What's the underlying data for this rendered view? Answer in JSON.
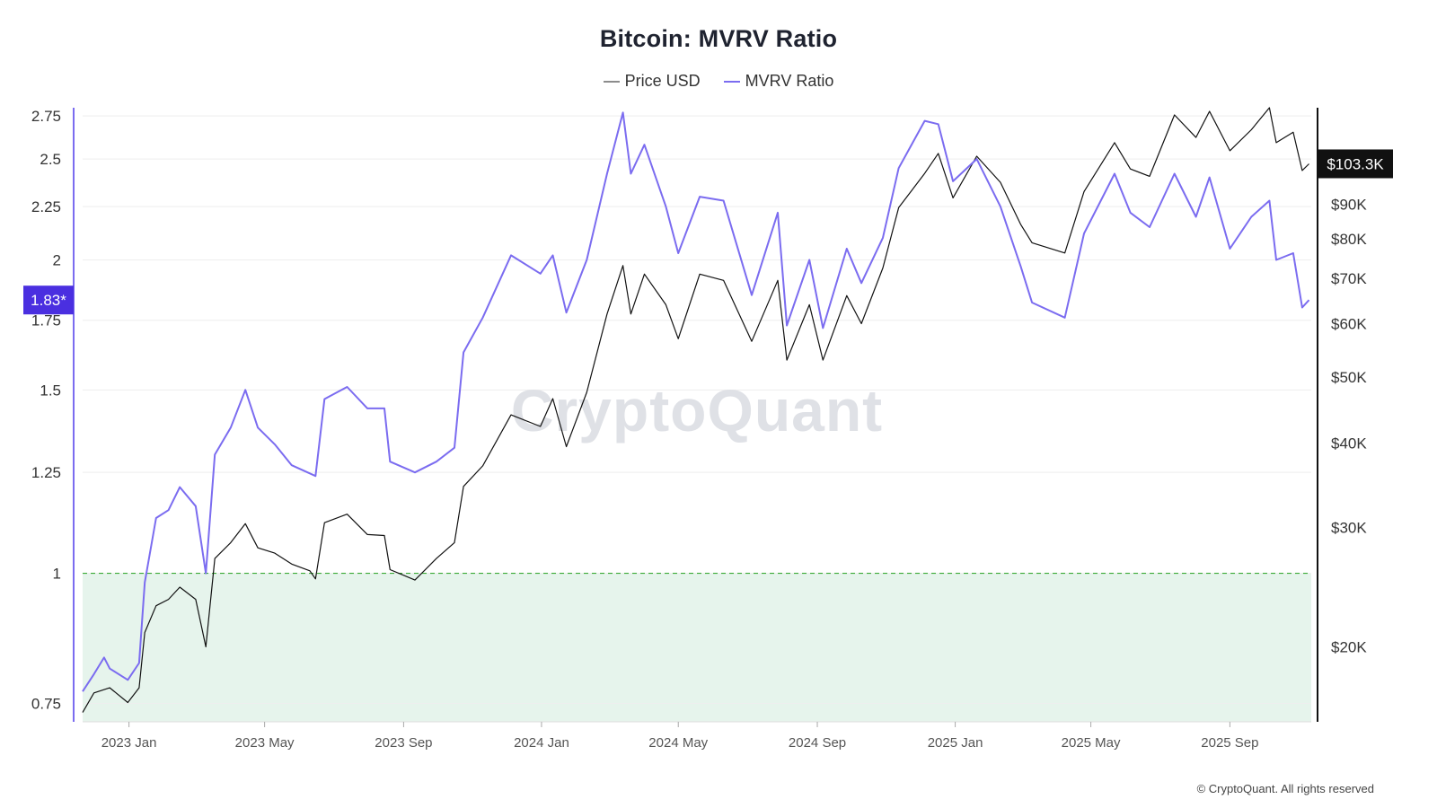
{
  "chart_data": {
    "type": "line",
    "title": "Bitcoin: MVRV Ratio",
    "legend": [
      {
        "name": "Price USD",
        "color": "#8c8c8c"
      },
      {
        "name": "MVRV Ratio",
        "color": "#7b6cf0"
      }
    ],
    "legend_placement": "top-center",
    "y_left": {
      "ticks": [
        "0.75",
        "1",
        "1.25",
        "1.5",
        "1.75",
        "2",
        "2.25",
        "2.5",
        "2.75"
      ],
      "range": [
        0.72,
        2.8
      ],
      "scale": "log",
      "current_value_label": "1.83*",
      "current_value": 1.83,
      "color": "#7b6cf0"
    },
    "y_right": {
      "ticks": [
        "$20K",
        "$30K",
        "$40K",
        "$50K",
        "$60K",
        "$70K",
        "$80K",
        "$90K"
      ],
      "range": [
        15500,
        125000
      ],
      "scale": "log",
      "current_value_label": "$103.3K",
      "current_value": 103300
    },
    "x_axis": {
      "ticks": [
        "2023 Jan",
        "2023 May",
        "2023 Sep",
        "2024 Jan",
        "2024 May",
        "2024 Sep",
        "2025 Jan",
        "2025 May",
        "2025 Sep"
      ]
    },
    "threshold": {
      "value": 1,
      "style": "dashed",
      "color": "#3aaa35",
      "fill_below": "#e6f4ec"
    },
    "grid": true,
    "series": [
      {
        "name": "Price USD",
        "color": "#111111",
        "axis": "right",
        "points": [
          [
            "2022-11-21",
            16000
          ],
          [
            "2022-12-01",
            17100
          ],
          [
            "2022-12-15",
            17400
          ],
          [
            "2022-12-31",
            16550
          ],
          [
            "2023-01-10",
            17400
          ],
          [
            "2023-01-15",
            21000
          ],
          [
            "2023-01-25",
            23000
          ],
          [
            "2023-02-05",
            23500
          ],
          [
            "2023-02-15",
            24500
          ],
          [
            "2023-03-01",
            23500
          ],
          [
            "2023-03-10",
            20000
          ],
          [
            "2023-03-18",
            27000
          ],
          [
            "2023-04-01",
            28500
          ],
          [
            "2023-04-14",
            30400
          ],
          [
            "2023-04-25",
            28000
          ],
          [
            "2023-05-10",
            27500
          ],
          [
            "2023-05-25",
            26500
          ],
          [
            "2023-06-10",
            25900
          ],
          [
            "2023-06-15",
            25200
          ],
          [
            "2023-06-23",
            30500
          ],
          [
            "2023-07-13",
            31400
          ],
          [
            "2023-07-31",
            29300
          ],
          [
            "2023-08-15",
            29200
          ],
          [
            "2023-08-20",
            26000
          ],
          [
            "2023-09-11",
            25100
          ],
          [
            "2023-09-30",
            27000
          ],
          [
            "2023-10-16",
            28500
          ],
          [
            "2023-10-24",
            34500
          ],
          [
            "2023-11-10",
            37000
          ],
          [
            "2023-12-05",
            44000
          ],
          [
            "2023-12-31",
            42300
          ],
          [
            "2024-01-11",
            46500
          ],
          [
            "2024-01-23",
            39500
          ],
          [
            "2024-02-10",
            47500
          ],
          [
            "2024-02-28",
            62000
          ],
          [
            "2024-03-13",
            73100
          ],
          [
            "2024-03-20",
            62000
          ],
          [
            "2024-04-01",
            71000
          ],
          [
            "2024-04-20",
            64000
          ],
          [
            "2024-05-01",
            57000
          ],
          [
            "2024-05-20",
            71000
          ],
          [
            "2024-06-10",
            69500
          ],
          [
            "2024-07-05",
            56500
          ],
          [
            "2024-07-28",
            69500
          ],
          [
            "2024-08-05",
            53000
          ],
          [
            "2024-08-25",
            64000
          ],
          [
            "2024-09-06",
            53000
          ],
          [
            "2024-09-27",
            66000
          ],
          [
            "2024-10-10",
            60000
          ],
          [
            "2024-10-29",
            72500
          ],
          [
            "2024-11-12",
            89000
          ],
          [
            "2024-12-05",
            100000
          ],
          [
            "2024-12-17",
            107000
          ],
          [
            "2024-12-30",
            92000
          ],
          [
            "2025-01-20",
            106000
          ],
          [
            "2025-02-10",
            97000
          ],
          [
            "2025-02-28",
            84000
          ],
          [
            "2025-03-10",
            79000
          ],
          [
            "2025-04-08",
            76300
          ],
          [
            "2025-04-25",
            94000
          ],
          [
            "2025-05-22",
            111000
          ],
          [
            "2025-06-05",
            101500
          ],
          [
            "2025-06-22",
            99000
          ],
          [
            "2025-07-14",
            122000
          ],
          [
            "2025-08-02",
            113000
          ],
          [
            "2025-08-14",
            123500
          ],
          [
            "2025-09-01",
            108000
          ],
          [
            "2025-09-20",
            116000
          ],
          [
            "2025-10-06",
            125000
          ],
          [
            "2025-10-12",
            111000
          ],
          [
            "2025-10-27",
            115000
          ],
          [
            "2025-11-04",
            101000
          ],
          [
            "2025-11-10",
            103300
          ]
        ]
      },
      {
        "name": "MVRV Ratio",
        "color": "#7b6cf0",
        "axis": "left",
        "points": [
          [
            "2022-11-21",
            0.77
          ],
          [
            "2022-12-01",
            0.8
          ],
          [
            "2022-12-10",
            0.83
          ],
          [
            "2022-12-15",
            0.81
          ],
          [
            "2022-12-31",
            0.79
          ],
          [
            "2023-01-10",
            0.82
          ],
          [
            "2023-01-15",
            0.98
          ],
          [
            "2023-01-25",
            1.13
          ],
          [
            "2023-02-05",
            1.15
          ],
          [
            "2023-02-15",
            1.21
          ],
          [
            "2023-03-01",
            1.16
          ],
          [
            "2023-03-10",
            1.0
          ],
          [
            "2023-03-18",
            1.3
          ],
          [
            "2023-04-01",
            1.38
          ],
          [
            "2023-04-14",
            1.5
          ],
          [
            "2023-04-25",
            1.38
          ],
          [
            "2023-05-10",
            1.33
          ],
          [
            "2023-05-25",
            1.27
          ],
          [
            "2023-06-15",
            1.24
          ],
          [
            "2023-06-23",
            1.47
          ],
          [
            "2023-07-13",
            1.51
          ],
          [
            "2023-07-31",
            1.44
          ],
          [
            "2023-08-15",
            1.44
          ],
          [
            "2023-08-20",
            1.28
          ],
          [
            "2023-09-11",
            1.25
          ],
          [
            "2023-09-30",
            1.28
          ],
          [
            "2023-10-16",
            1.32
          ],
          [
            "2023-10-24",
            1.63
          ],
          [
            "2023-11-10",
            1.76
          ],
          [
            "2023-12-05",
            2.02
          ],
          [
            "2023-12-31",
            1.94
          ],
          [
            "2024-01-11",
            2.02
          ],
          [
            "2024-01-23",
            1.78
          ],
          [
            "2024-02-10",
            2.0
          ],
          [
            "2024-02-28",
            2.42
          ],
          [
            "2024-03-13",
            2.77
          ],
          [
            "2024-03-20",
            2.42
          ],
          [
            "2024-04-01",
            2.58
          ],
          [
            "2024-04-20",
            2.25
          ],
          [
            "2024-05-01",
            2.03
          ],
          [
            "2024-05-20",
            2.3
          ],
          [
            "2024-06-10",
            2.28
          ],
          [
            "2024-07-05",
            1.85
          ],
          [
            "2024-07-28",
            2.22
          ],
          [
            "2024-08-05",
            1.73
          ],
          [
            "2024-08-25",
            2.0
          ],
          [
            "2024-09-06",
            1.72
          ],
          [
            "2024-09-27",
            2.05
          ],
          [
            "2024-10-10",
            1.9
          ],
          [
            "2024-10-29",
            2.1
          ],
          [
            "2024-11-12",
            2.45
          ],
          [
            "2024-12-05",
            2.72
          ],
          [
            "2024-12-17",
            2.7
          ],
          [
            "2024-12-30",
            2.38
          ],
          [
            "2025-01-20",
            2.5
          ],
          [
            "2025-02-10",
            2.25
          ],
          [
            "2025-02-28",
            1.97
          ],
          [
            "2025-03-10",
            1.82
          ],
          [
            "2025-04-08",
            1.76
          ],
          [
            "2025-04-25",
            2.12
          ],
          [
            "2025-05-22",
            2.42
          ],
          [
            "2025-06-05",
            2.22
          ],
          [
            "2025-06-22",
            2.15
          ],
          [
            "2025-07-14",
            2.42
          ],
          [
            "2025-08-02",
            2.2
          ],
          [
            "2025-08-14",
            2.4
          ],
          [
            "2025-09-01",
            2.05
          ],
          [
            "2025-09-20",
            2.2
          ],
          [
            "2025-10-06",
            2.28
          ],
          [
            "2025-10-12",
            2.0
          ],
          [
            "2025-10-27",
            2.03
          ],
          [
            "2025-11-04",
            1.8
          ],
          [
            "2025-11-10",
            1.83
          ]
        ]
      }
    ]
  },
  "watermark": "CryptoQuant",
  "copyright": "© CryptoQuant. All rights reserved"
}
